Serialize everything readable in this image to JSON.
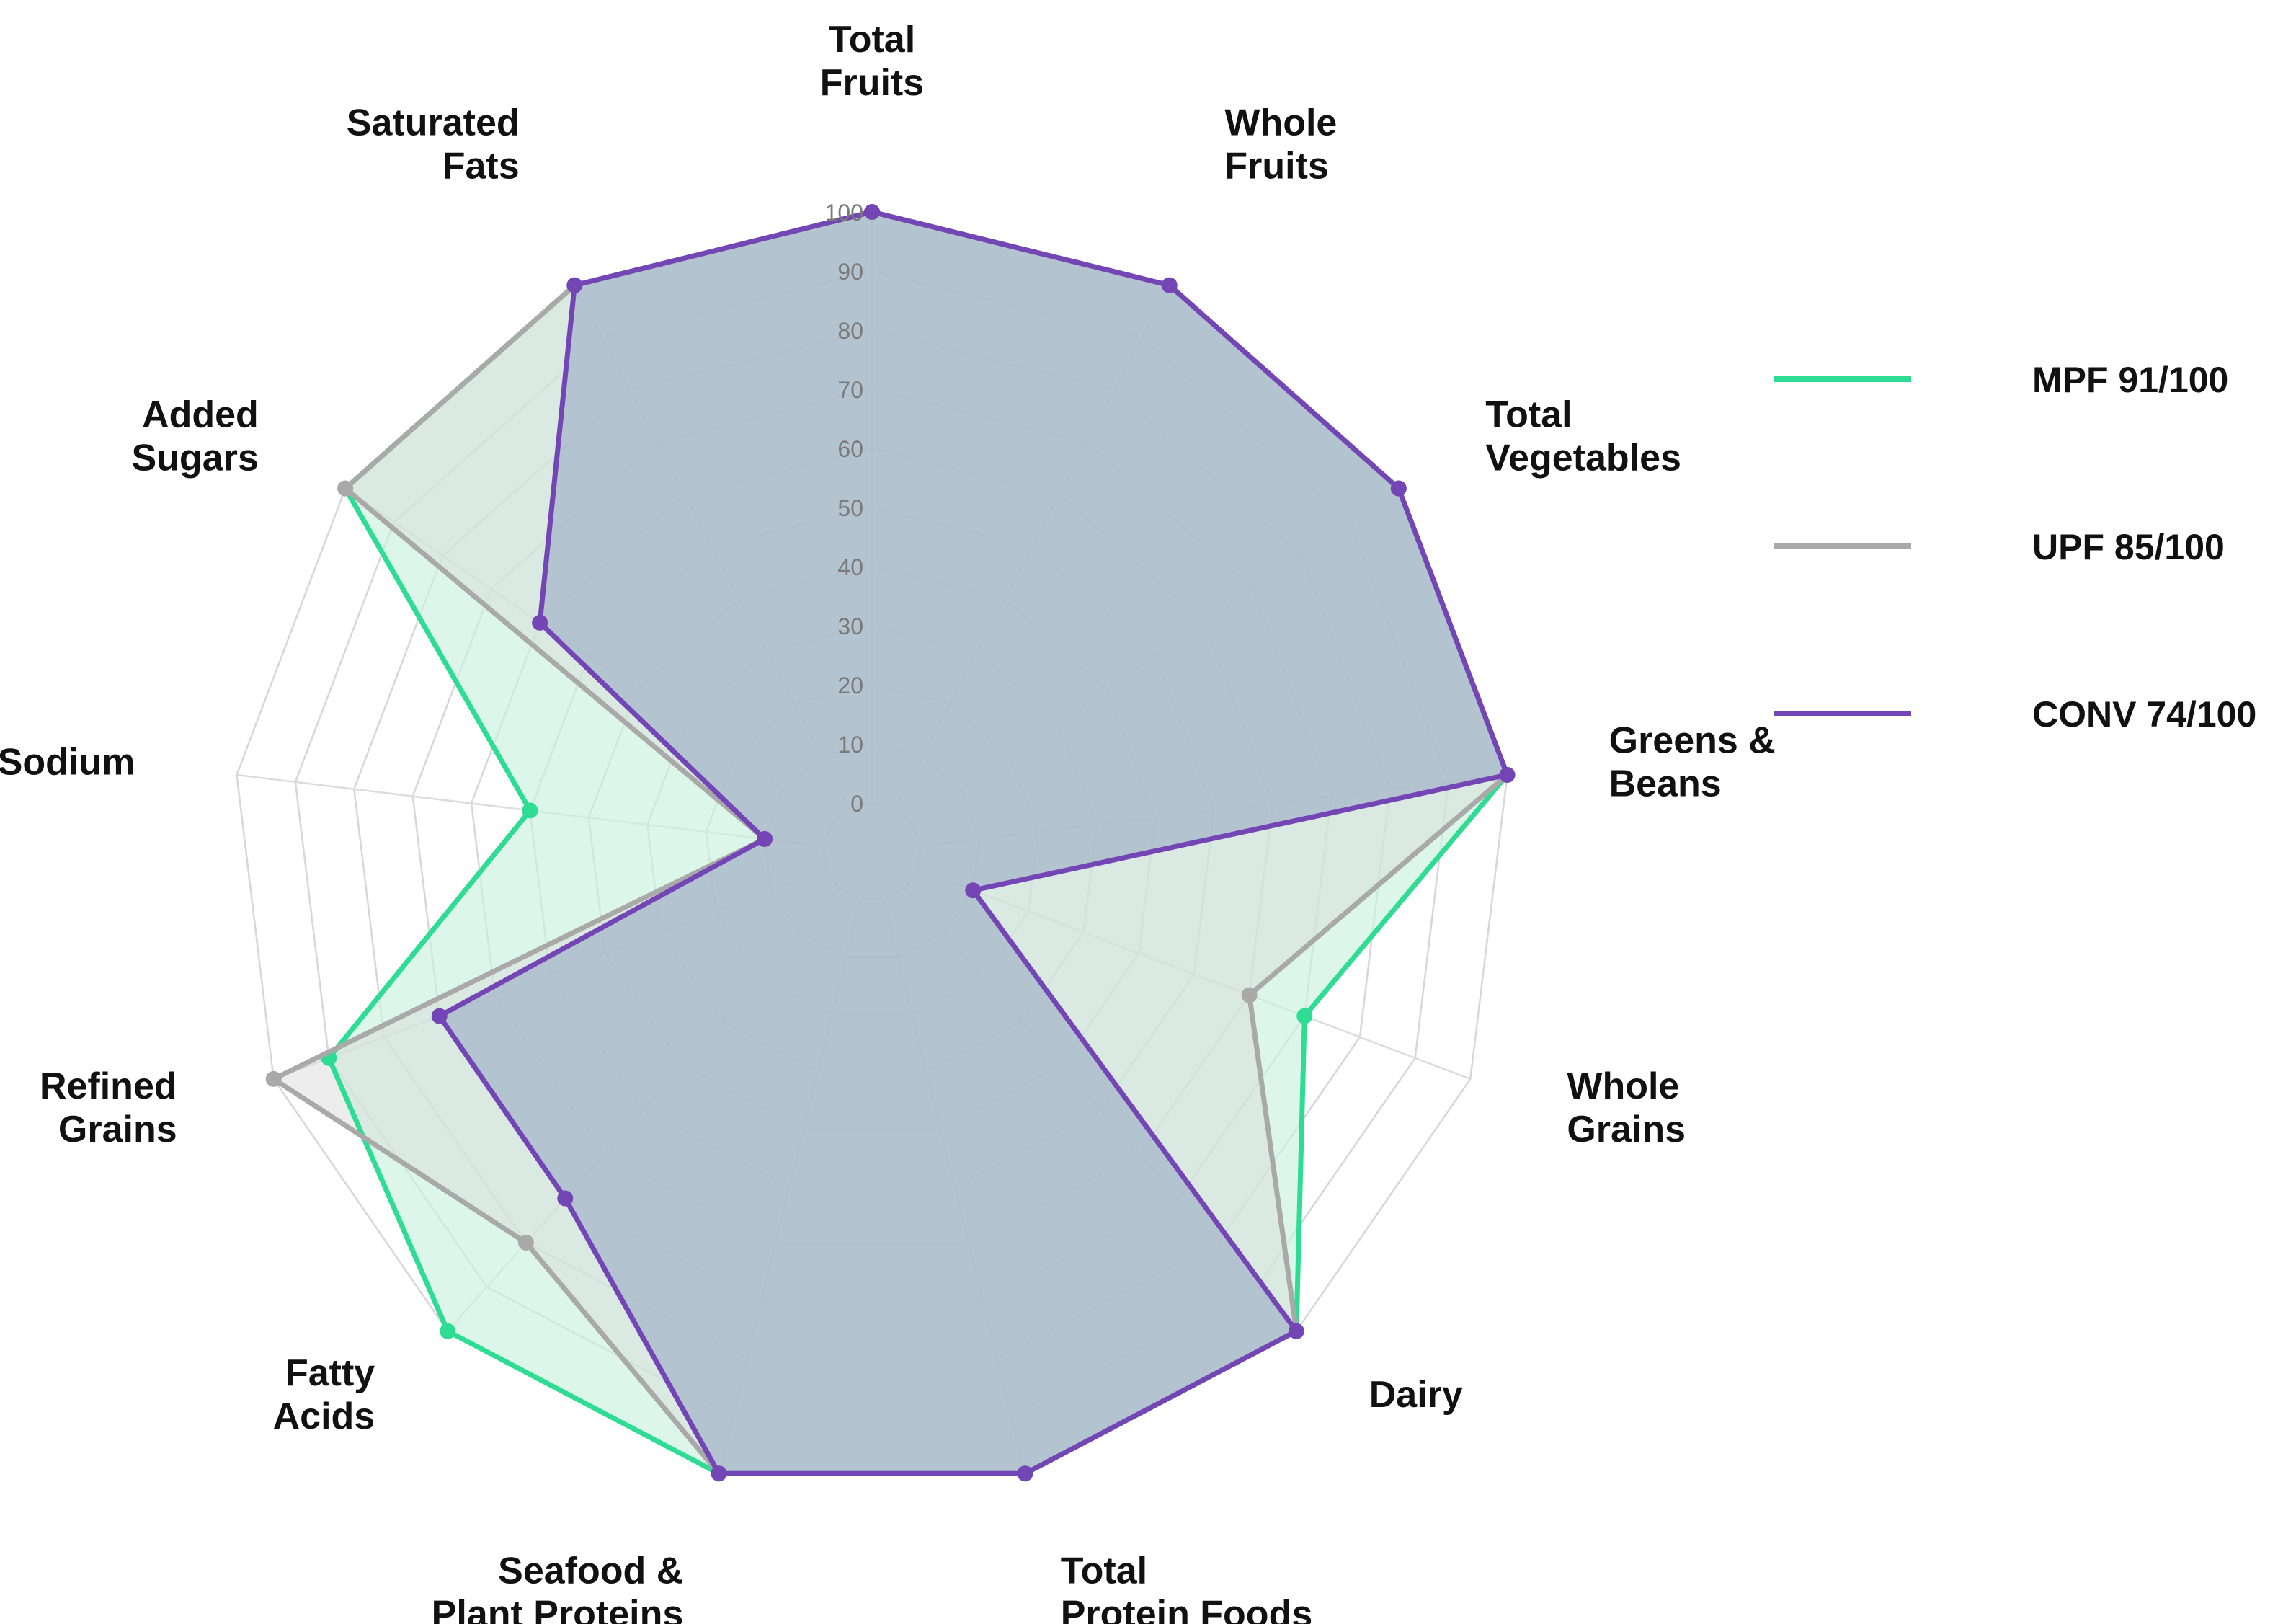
{
  "chart_data": {
    "type": "radar",
    "categories": [
      "Total\nFruits",
      "Whole\nFruits",
      "Total\nVegetables",
      "Greens &\nBeans",
      "Whole\nGrains",
      "Dairy",
      "Total\nProtein Foods",
      "Seafood &\nPlant Proteins",
      "Fatty\nAcids",
      "Refined\nGrains",
      "Sodium",
      "Added\nSugars",
      "Saturated\nFats"
    ],
    "rlim": [
      0,
      100
    ],
    "ticks": [
      "0",
      "10",
      "20",
      "30",
      "40",
      "50",
      "60",
      "70",
      "80",
      "90",
      "100"
    ],
    "grid": true,
    "legend_position": "right",
    "series": [
      {
        "name": "MPF 91/100",
        "color": "#2fdc93",
        "fill": "#c9f2dd",
        "fill_opacity": 0.65,
        "values": [
          100,
          100,
          100,
          100,
          70,
          100,
          100,
          100,
          100,
          90,
          50,
          100,
          100
        ]
      },
      {
        "name": "UPF 85/100",
        "color": "#a9a9a9",
        "fill": "#d6d6d6",
        "fill_opacity": 0.45,
        "values": [
          100,
          100,
          100,
          100,
          60,
          100,
          100,
          100,
          80,
          100,
          10,
          100,
          100
        ]
      },
      {
        "name": "CONV 74/100",
        "color": "#7446b5",
        "fill": "#a4b2c9",
        "fill_opacity": 0.7,
        "values": [
          100,
          100,
          100,
          100,
          10,
          100,
          100,
          100,
          70,
          70,
          10,
          60,
          100
        ]
      }
    ]
  }
}
